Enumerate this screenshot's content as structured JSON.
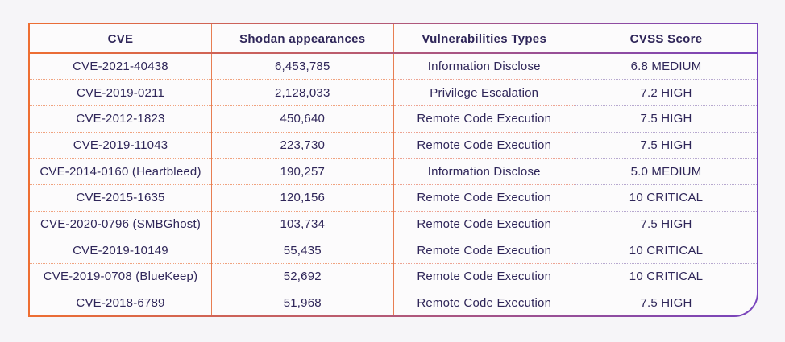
{
  "chart_data": {
    "type": "table",
    "columns": [
      "CVE",
      "Shodan appearances",
      "Vulnerabilities Types",
      "CVSS Score"
    ],
    "rows": [
      [
        "CVE-2021-40438",
        "6,453,785",
        "Information Disclose",
        "6.8 MEDIUM"
      ],
      [
        "CVE-2019-0211",
        "2,128,033",
        "Privilege Escalation",
        "7.2 HIGH"
      ],
      [
        "CVE-2012-1823",
        "450,640",
        "Remote Code Execution",
        "7.5 HIGH"
      ],
      [
        "CVE-2019-11043",
        "223,730",
        "Remote Code Execution",
        "7.5 HIGH"
      ],
      [
        "CVE-2014-0160 (Heartbleed)",
        "190,257",
        "Information Disclose",
        "5.0 MEDIUM"
      ],
      [
        "CVE-2015-1635",
        "120,156",
        "Remote Code Execution",
        "10 CRITICAL"
      ],
      [
        "CVE-2020-0796 (SMBGhost)",
        "103,734",
        "Remote Code Execution",
        "7.5 HIGH"
      ],
      [
        "CVE-2019-10149",
        "55,435",
        "Remote Code Execution",
        "10 CRITICAL"
      ],
      [
        "CVE-2019-0708 (BlueKeep)",
        "52,692",
        "Remote Code Execution",
        "10 CRITICAL"
      ],
      [
        "CVE-2018-6789",
        "51,968",
        "Remote Code Execution",
        "7.5 HIGH"
      ]
    ]
  },
  "colors": {
    "accent_orange": "#ee6e32",
    "accent_purple": "#7743bd",
    "text": "#2f2659",
    "column_separator": "#e87e52",
    "row_dots_left": "#f0a27e",
    "row_dots_mid": "#eda392",
    "row_dots_right": "#b7a8cf",
    "table_background": "#fcfbfc",
    "page_background": "#f6f5f8"
  }
}
